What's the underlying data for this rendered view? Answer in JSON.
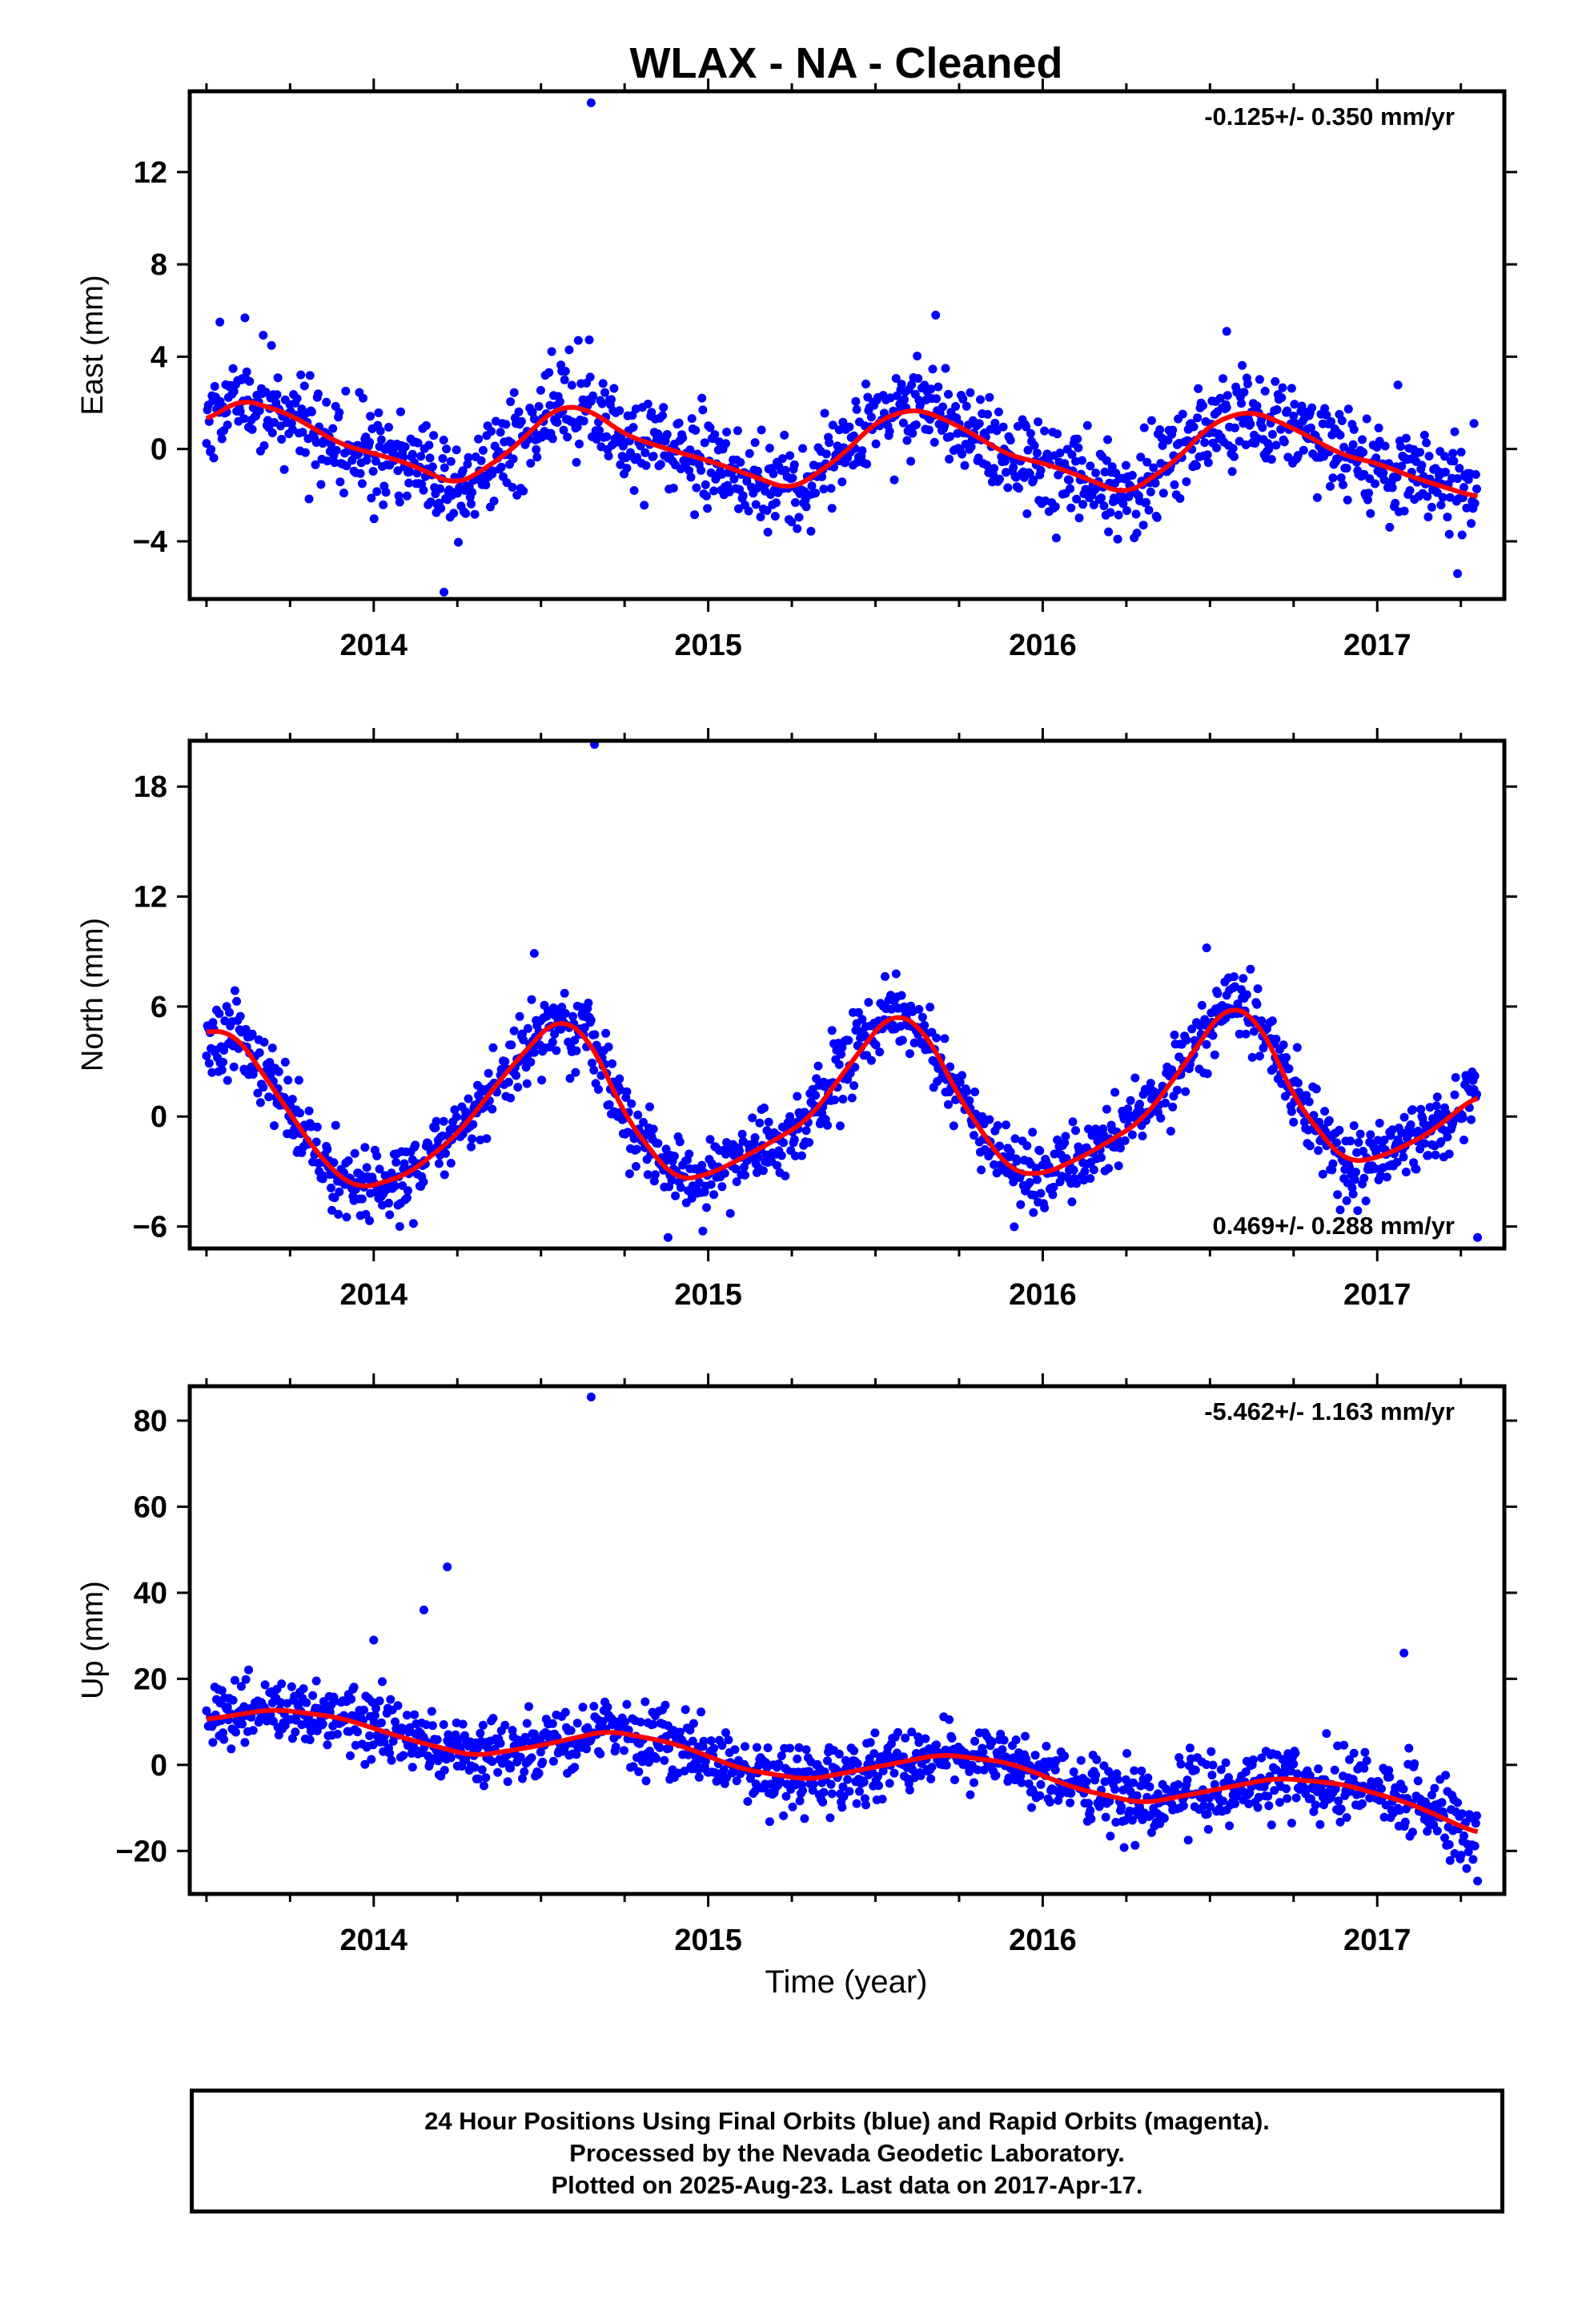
{
  "title": "WLAX  - NA - Cleaned",
  "x_axis_label": "Time (year)",
  "x_tick_labels": [
    "2014",
    "2015",
    "2016",
    "2017"
  ],
  "footer": {
    "line1": "24 Hour Positions Using Final Orbits (blue) and Rapid Orbits (magenta).",
    "line2": "Processed by the Nevada Geodetic Laboratory.",
    "line3": "Plotted on 2025-Aug-23. Last data on 2017-Apr-17."
  },
  "colors": {
    "points": "#0000ff",
    "fit": "#ff0000",
    "frame": "#000000"
  },
  "chart_data": [
    {
      "type": "scatter",
      "ylabel": "East (mm)",
      "rate_label": "-0.125+/- 0.350 mm/yr",
      "rate_position": "top-right",
      "xlim": [
        2013.45,
        2017.38
      ],
      "ylim": [
        -6.5,
        15.5
      ],
      "y_ticks": [
        -4,
        0,
        4,
        8,
        12
      ],
      "y_tick_labels": [
        "−4",
        "0",
        "4",
        "8",
        "12"
      ],
      "fit": {
        "x": [
          2013.5,
          2013.6,
          2013.75,
          2013.9,
          2014.0,
          2014.1,
          2014.25,
          2014.4,
          2014.55,
          2014.65,
          2014.75,
          2014.9,
          2015.0,
          2015.1,
          2015.25,
          2015.4,
          2015.5,
          2015.62,
          2015.75,
          2015.9,
          2016.0,
          2016.1,
          2016.25,
          2016.4,
          2016.5,
          2016.62,
          2016.75,
          2016.9,
          2017.0,
          2017.1,
          2017.3
        ],
        "y": [
          1.2,
          2.2,
          1.5,
          0.2,
          -0.2,
          -0.6,
          -1.6,
          -0.2,
          1.9,
          1.7,
          0.6,
          -0.1,
          -0.5,
          -1.0,
          -1.8,
          -0.3,
          1.2,
          1.8,
          1.0,
          -0.3,
          -0.6,
          -1.1,
          -2.0,
          -0.5,
          1.1,
          1.7,
          0.9,
          -0.3,
          -0.6,
          -1.2,
          -2.1
        ]
      },
      "outliers": [
        {
          "x": 2014.65,
          "y": 15.0
        },
        {
          "x": 2014.21,
          "y": -6.2
        },
        {
          "x": 2013.54,
          "y": 5.5
        },
        {
          "x": 2015.68,
          "y": 5.8
        },
        {
          "x": 2016.55,
          "y": 5.1
        },
        {
          "x": 2017.24,
          "y": -5.4
        }
      ],
      "noise": 1.0,
      "seed": 11
    },
    {
      "type": "scatter",
      "ylabel": "North (mm)",
      "rate_label": "0.469+/- 0.288 mm/yr",
      "rate_position": "bottom-right",
      "xlim": [
        2013.45,
        2017.38
      ],
      "ylim": [
        -7.2,
        20.5
      ],
      "y_ticks": [
        -6,
        0,
        6,
        12,
        18
      ],
      "y_tick_labels": [
        "−6",
        "0",
        "6",
        "12",
        "18"
      ],
      "fit": {
        "x": [
          2013.5,
          2013.58,
          2013.7,
          2013.85,
          2013.95,
          2014.1,
          2014.25,
          2014.4,
          2014.55,
          2014.65,
          2014.75,
          2014.9,
          2015.0,
          2015.15,
          2015.3,
          2015.45,
          2015.55,
          2015.65,
          2015.75,
          2015.9,
          2016.0,
          2016.15,
          2016.3,
          2016.45,
          2016.55,
          2016.65,
          2016.75,
          2016.9,
          2017.0,
          2017.15,
          2017.3
        ],
        "y": [
          4.6,
          4.7,
          1.5,
          -2.5,
          -4.0,
          -3.2,
          -1.0,
          2.5,
          5.5,
          4.2,
          0.0,
          -3.5,
          -3.2,
          -1.8,
          -0.2,
          3.5,
          5.8,
          4.7,
          1.0,
          -3.0,
          -3.2,
          -1.9,
          -0.2,
          3.5,
          6.2,
          5.2,
          1.0,
          -2.5,
          -2.3,
          -1.0,
          1.2
        ]
      },
      "outliers": [
        {
          "x": 2014.66,
          "y": 20.3
        },
        {
          "x": 2014.48,
          "y": 8.9
        },
        {
          "x": 2016.49,
          "y": 9.2
        },
        {
          "x": 2014.88,
          "y": -6.6
        },
        {
          "x": 2017.3,
          "y": -6.6
        }
      ],
      "noise": 1.0,
      "seed": 23
    },
    {
      "type": "scatter",
      "ylabel": "Up (mm)",
      "rate_label": "-5.462+/- 1.163 mm/yr",
      "rate_position": "top-right",
      "xlim": [
        2013.45,
        2017.38
      ],
      "ylim": [
        -30,
        88
      ],
      "y_ticks": [
        -20,
        0,
        20,
        40,
        60,
        80
      ],
      "y_tick_labels": [
        "−20",
        "0",
        "20",
        "40",
        "60",
        "80"
      ],
      "fit": {
        "x": [
          2013.5,
          2013.7,
          2013.9,
          2014.1,
          2014.3,
          2014.5,
          2014.7,
          2014.9,
          2015.1,
          2015.3,
          2015.5,
          2015.7,
          2015.9,
          2016.1,
          2016.3,
          2016.5,
          2016.7,
          2016.9,
          2017.1,
          2017.3
        ],
        "y": [
          10.5,
          13.0,
          11.0,
          6.0,
          2.0,
          4.5,
          8.0,
          5.0,
          -1.0,
          -3.5,
          -0.5,
          2.5,
          0.5,
          -5.5,
          -9.0,
          -6.0,
          -3.0,
          -4.5,
          -9.0,
          -16.0
        ]
      },
      "outliers": [
        {
          "x": 2014.65,
          "y": 85.5
        },
        {
          "x": 2014.22,
          "y": 46.0
        },
        {
          "x": 2014.15,
          "y": 36.0
        },
        {
          "x": 2017.08,
          "y": 26.0
        },
        {
          "x": 2014.0,
          "y": 29.0
        },
        {
          "x": 2017.3,
          "y": -27.0
        }
      ],
      "noise": 3.8,
      "seed": 37
    }
  ]
}
